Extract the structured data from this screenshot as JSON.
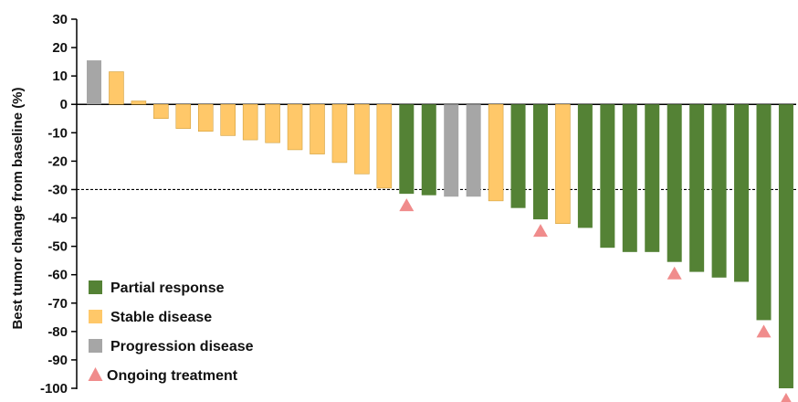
{
  "chart_data": {
    "type": "bar",
    "ylabel": "Best tumor change from baseline (%)",
    "ylim": [
      -100,
      30
    ],
    "yticks": [
      30,
      20,
      10,
      0,
      -10,
      -20,
      -30,
      -40,
      -50,
      -60,
      -70,
      -80,
      -90,
      -100
    ],
    "threshold": -30,
    "colors": {
      "partial": "#548235",
      "stable": "#FFC869",
      "progression": "#A6A6A6",
      "ongoing": "#F08C8C"
    },
    "legend": [
      {
        "key": "partial",
        "label": "Partial response",
        "marker": "square"
      },
      {
        "key": "stable",
        "label": "Stable disease",
        "marker": "square"
      },
      {
        "key": "progression",
        "label": "Progression disease",
        "marker": "square"
      },
      {
        "key": "ongoing",
        "label": "Ongoing treatment",
        "marker": "triangle"
      }
    ],
    "bars": [
      {
        "value": 15.5,
        "category": "progression",
        "ongoing": false
      },
      {
        "value": 11.5,
        "category": "stable",
        "ongoing": false
      },
      {
        "value": 1.2,
        "category": "stable",
        "ongoing": false
      },
      {
        "value": -5,
        "category": "stable",
        "ongoing": false
      },
      {
        "value": -8.5,
        "category": "stable",
        "ongoing": false
      },
      {
        "value": -9.5,
        "category": "stable",
        "ongoing": false
      },
      {
        "value": -11,
        "category": "stable",
        "ongoing": false
      },
      {
        "value": -12.5,
        "category": "stable",
        "ongoing": false
      },
      {
        "value": -13.5,
        "category": "stable",
        "ongoing": false
      },
      {
        "value": -16,
        "category": "stable",
        "ongoing": false
      },
      {
        "value": -17.5,
        "category": "stable",
        "ongoing": false
      },
      {
        "value": -20.5,
        "category": "stable",
        "ongoing": false
      },
      {
        "value": -24.5,
        "category": "stable",
        "ongoing": false
      },
      {
        "value": -29.5,
        "category": "stable",
        "ongoing": false
      },
      {
        "value": -31.5,
        "category": "partial",
        "ongoing": true
      },
      {
        "value": -32,
        "category": "partial",
        "ongoing": false
      },
      {
        "value": -32.5,
        "category": "progression",
        "ongoing": false
      },
      {
        "value": -32.5,
        "category": "progression",
        "ongoing": false
      },
      {
        "value": -34,
        "category": "stable",
        "ongoing": false
      },
      {
        "value": -36.5,
        "category": "partial",
        "ongoing": false
      },
      {
        "value": -40.5,
        "category": "partial",
        "ongoing": true
      },
      {
        "value": -42,
        "category": "stable",
        "ongoing": false
      },
      {
        "value": -43.5,
        "category": "partial",
        "ongoing": false
      },
      {
        "value": -50.5,
        "category": "partial",
        "ongoing": false
      },
      {
        "value": -52,
        "category": "partial",
        "ongoing": false
      },
      {
        "value": -52,
        "category": "partial",
        "ongoing": false
      },
      {
        "value": -55.5,
        "category": "partial",
        "ongoing": true
      },
      {
        "value": -59,
        "category": "partial",
        "ongoing": false
      },
      {
        "value": -61,
        "category": "partial",
        "ongoing": false
      },
      {
        "value": -62.5,
        "category": "partial",
        "ongoing": false
      },
      {
        "value": -76,
        "category": "partial",
        "ongoing": true
      },
      {
        "value": -100,
        "category": "partial",
        "ongoing": true
      }
    ]
  }
}
